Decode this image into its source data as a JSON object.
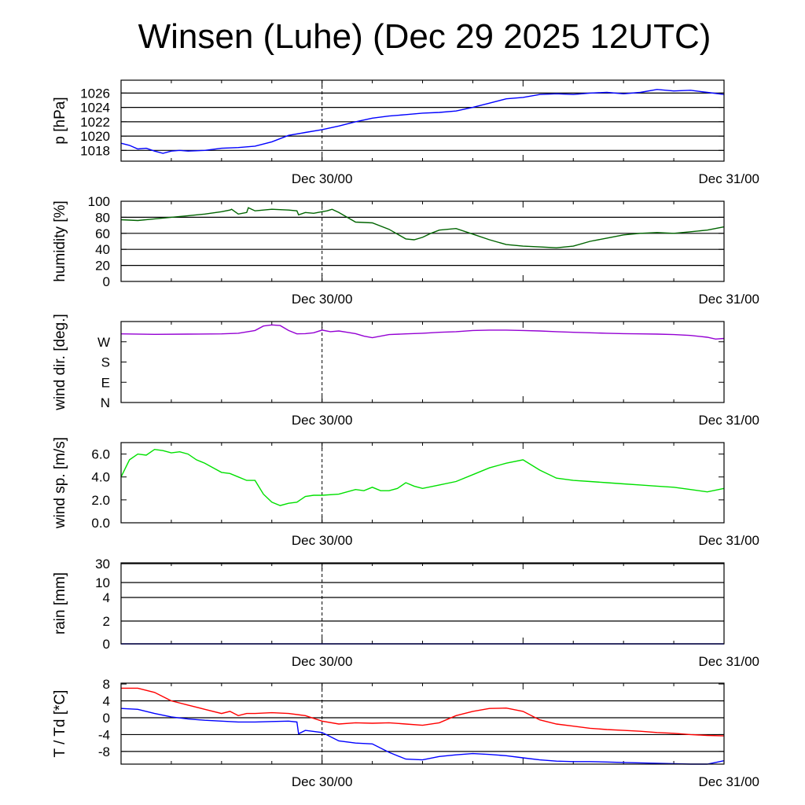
{
  "page": {
    "title": "Winsen (Luhe) (Dec 29 2025 12UTC)"
  },
  "x_axis": {
    "tick_labels": [
      "Dec 30/00",
      "Dec 31/00"
    ]
  },
  "chart_data": [
    {
      "type": "line",
      "ylabel": "p [hPa]",
      "ylim": [
        1016.5,
        1027.8
      ],
      "yticks": [
        1018,
        1020,
        1022,
        1024,
        1026
      ],
      "ytick_labels": [
        "1018",
        "1020",
        "1022",
        "1024",
        "1026"
      ],
      "gridlines": [
        1018,
        1020,
        1022,
        1024,
        1026
      ],
      "series": [
        {
          "color": "#0000ff",
          "x": [
            0,
            0.5,
            1,
            1.5,
            2,
            2.5,
            3,
            3.5,
            4,
            5,
            6,
            7,
            8,
            9,
            10,
            11,
            12,
            13,
            14,
            15,
            16,
            17,
            18,
            19,
            20,
            21,
            22,
            23,
            24,
            25,
            26,
            27,
            28,
            29,
            30,
            31,
            32,
            33,
            34,
            35,
            36
          ],
          "y": [
            1019,
            1018.7,
            1018.2,
            1018.3,
            1017.9,
            1017.6,
            1017.9,
            1018,
            1017.9,
            1018,
            1018.3,
            1018.4,
            1018.6,
            1019.2,
            1020.1,
            1020.5,
            1020.9,
            1021.4,
            1022,
            1022.5,
            1022.8,
            1023,
            1023.2,
            1023.3,
            1023.5,
            1024,
            1024.6,
            1025.2,
            1025.4,
            1025.8,
            1025.9,
            1025.8,
            1026,
            1026.1,
            1025.9,
            1026.1,
            1026.5,
            1026.3,
            1026.4,
            1026.1,
            1025.8
          ]
        }
      ]
    },
    {
      "type": "line",
      "ylabel": "humidity [%]",
      "ylim": [
        0,
        100
      ],
      "yticks": [
        0,
        20,
        40,
        60,
        80,
        100
      ],
      "ytick_labels": [
        "0",
        "20",
        "40",
        "60",
        "80",
        "100"
      ],
      "gridlines": [
        20,
        40,
        60,
        80
      ],
      "series": [
        {
          "color": "#006400",
          "x": [
            0,
            1,
            2,
            3,
            4,
            5,
            6,
            6.5,
            6.6,
            7,
            7.5,
            7.6,
            8,
            9,
            10,
            10.5,
            10.6,
            11,
            11.5,
            12,
            12.3,
            12.6,
            13,
            13.5,
            14,
            15,
            16,
            17,
            17.5,
            18,
            18.5,
            19,
            20,
            21,
            22,
            23,
            24,
            25,
            26,
            27,
            28,
            29,
            30,
            31,
            32,
            33,
            34,
            35,
            36
          ],
          "y": [
            77,
            76,
            78,
            80,
            82,
            84,
            87,
            89,
            90,
            84,
            86,
            92,
            88,
            90,
            89,
            88,
            83,
            86,
            85,
            87,
            88,
            90,
            86,
            80,
            74,
            73,
            65,
            53,
            52,
            55,
            60,
            64,
            66,
            59,
            52,
            46,
            44,
            43,
            42,
            44,
            50,
            54,
            58,
            60,
            61,
            60,
            62,
            64,
            68
          ]
        }
      ]
    },
    {
      "type": "line",
      "ylabel": "wind dir. [deg.]",
      "ylim": [
        0,
        360
      ],
      "yticks": [
        0,
        90,
        180,
        270
      ],
      "ytick_labels": [
        "N",
        "E",
        "S",
        "W"
      ],
      "gridlines": [],
      "series": [
        {
          "color": "#9400d3",
          "x": [
            0,
            2,
            4,
            6,
            7,
            8,
            8.5,
            9,
            9.5,
            10,
            10.5,
            11,
            11.5,
            12,
            12.5,
            13,
            13.5,
            14,
            14.5,
            15,
            16,
            17,
            18,
            19,
            20,
            21,
            22,
            23,
            24,
            25,
            26,
            27,
            28,
            29,
            30,
            31,
            32,
            33,
            34,
            35,
            35.5,
            36
          ],
          "y": [
            305,
            303,
            304,
            305,
            308,
            320,
            340,
            345,
            342,
            320,
            305,
            306,
            310,
            322,
            315,
            318,
            312,
            306,
            295,
            288,
            302,
            305,
            308,
            312,
            315,
            320,
            322,
            322,
            320,
            318,
            315,
            312,
            310,
            308,
            306,
            305,
            304,
            302,
            298,
            290,
            282,
            285
          ]
        }
      ]
    },
    {
      "type": "line",
      "ylabel": "wind sp. [m/s]",
      "ylim": [
        0,
        7
      ],
      "yticks": [
        0,
        2,
        4,
        6
      ],
      "ytick_labels": [
        "0.0",
        "2.0",
        "4.0",
        "6.0"
      ],
      "gridlines": [],
      "series": [
        {
          "color": "#00e000",
          "x": [
            0,
            0.5,
            1,
            1.5,
            2,
            2.5,
            3,
            3.5,
            4,
            4.5,
            5,
            5.5,
            6,
            6.5,
            7,
            7.5,
            8,
            8.5,
            9,
            9.5,
            10,
            10.5,
            11,
            11.5,
            12,
            13,
            14,
            14.5,
            15,
            15.5,
            16,
            16.5,
            17,
            17.5,
            18,
            19,
            20,
            21,
            22,
            23,
            24,
            25,
            26,
            27,
            28,
            29,
            30,
            31,
            32,
            33,
            34,
            35,
            36
          ],
          "y": [
            4,
            5.5,
            6,
            5.9,
            6.4,
            6.3,
            6.1,
            6.2,
            6,
            5.5,
            5.2,
            4.8,
            4.4,
            4.3,
            4,
            3.7,
            3.7,
            2.5,
            1.8,
            1.5,
            1.7,
            1.8,
            2.3,
            2.4,
            2.4,
            2.5,
            2.9,
            2.8,
            3.1,
            2.8,
            2.8,
            3.0,
            3.5,
            3.2,
            3.0,
            3.3,
            3.6,
            4.2,
            4.8,
            5.2,
            5.5,
            4.6,
            3.9,
            3.7,
            3.6,
            3.5,
            3.4,
            3.3,
            3.2,
            3.1,
            2.9,
            2.7,
            3.0
          ]
        }
      ]
    },
    {
      "type": "line",
      "ylabel": "rain [mm]",
      "ylim": [
        0,
        30
      ],
      "yticks": [
        0,
        2,
        4,
        10,
        30
      ],
      "ytick_labels": [
        "0",
        "2",
        "4",
        "10",
        "30"
      ],
      "gridlines": [
        2,
        4,
        10,
        30
      ],
      "scale": "log-like",
      "series": [
        {
          "color": "#0000ff",
          "x": [
            0,
            36
          ],
          "y": [
            0,
            0
          ]
        }
      ]
    },
    {
      "type": "line",
      "ylabel": "T / Td [*C]",
      "ylim": [
        -11,
        8.2
      ],
      "yticks": [
        -8,
        -4,
        0,
        4,
        8
      ],
      "ytick_labels": [
        "-8",
        "-4",
        "0",
        "4",
        "8"
      ],
      "gridlines": [
        -8,
        -4,
        0,
        4
      ],
      "series": [
        {
          "color": "#ff0000",
          "x": [
            0,
            1,
            2,
            3,
            4,
            5,
            6,
            6.5,
            7,
            7.5,
            8,
            9,
            10,
            11,
            12,
            13,
            14,
            15,
            16,
            17,
            18,
            19,
            20,
            21,
            22,
            23,
            24,
            25,
            26,
            27,
            28,
            29,
            30,
            31,
            32,
            33,
            34,
            35,
            36
          ],
          "y": [
            7,
            7,
            6,
            4,
            3,
            2,
            1,
            1.5,
            0.5,
            1,
            1,
            1.2,
            1,
            0.5,
            -0.8,
            -1.5,
            -1.2,
            -1.3,
            -1.2,
            -1.5,
            -1.8,
            -1.2,
            0.5,
            1.5,
            2.2,
            2.3,
            1.5,
            -0.5,
            -1.5,
            -2,
            -2.5,
            -2.8,
            -3,
            -3.2,
            -3.5,
            -3.7,
            -4,
            -4.2,
            -4.3
          ]
        },
        {
          "color": "#0000ff",
          "x": [
            0,
            1,
            2,
            3,
            4,
            5,
            6,
            7,
            8,
            9,
            10,
            10.5,
            10.6,
            11,
            12,
            13,
            14,
            15,
            16,
            17,
            18,
            19,
            20,
            21,
            22,
            23,
            24,
            25,
            26,
            27,
            28,
            29,
            30,
            31,
            32,
            33,
            34,
            35,
            36
          ],
          "y": [
            2.2,
            2.0,
            1.0,
            0.2,
            -0.3,
            -0.6,
            -0.8,
            -1.0,
            -1.0,
            -0.9,
            -0.8,
            -1.0,
            -3.8,
            -3.0,
            -3.5,
            -5.5,
            -6.0,
            -6.2,
            -8.2,
            -9.8,
            -10.0,
            -9.2,
            -8.8,
            -8.5,
            -8.7,
            -9.0,
            -9.5,
            -10.0,
            -10.3,
            -10.4,
            -10.4,
            -10.5,
            -10.6,
            -10.7,
            -10.8,
            -10.9,
            -11.0,
            -11.0,
            -10.2
          ]
        }
      ]
    }
  ]
}
